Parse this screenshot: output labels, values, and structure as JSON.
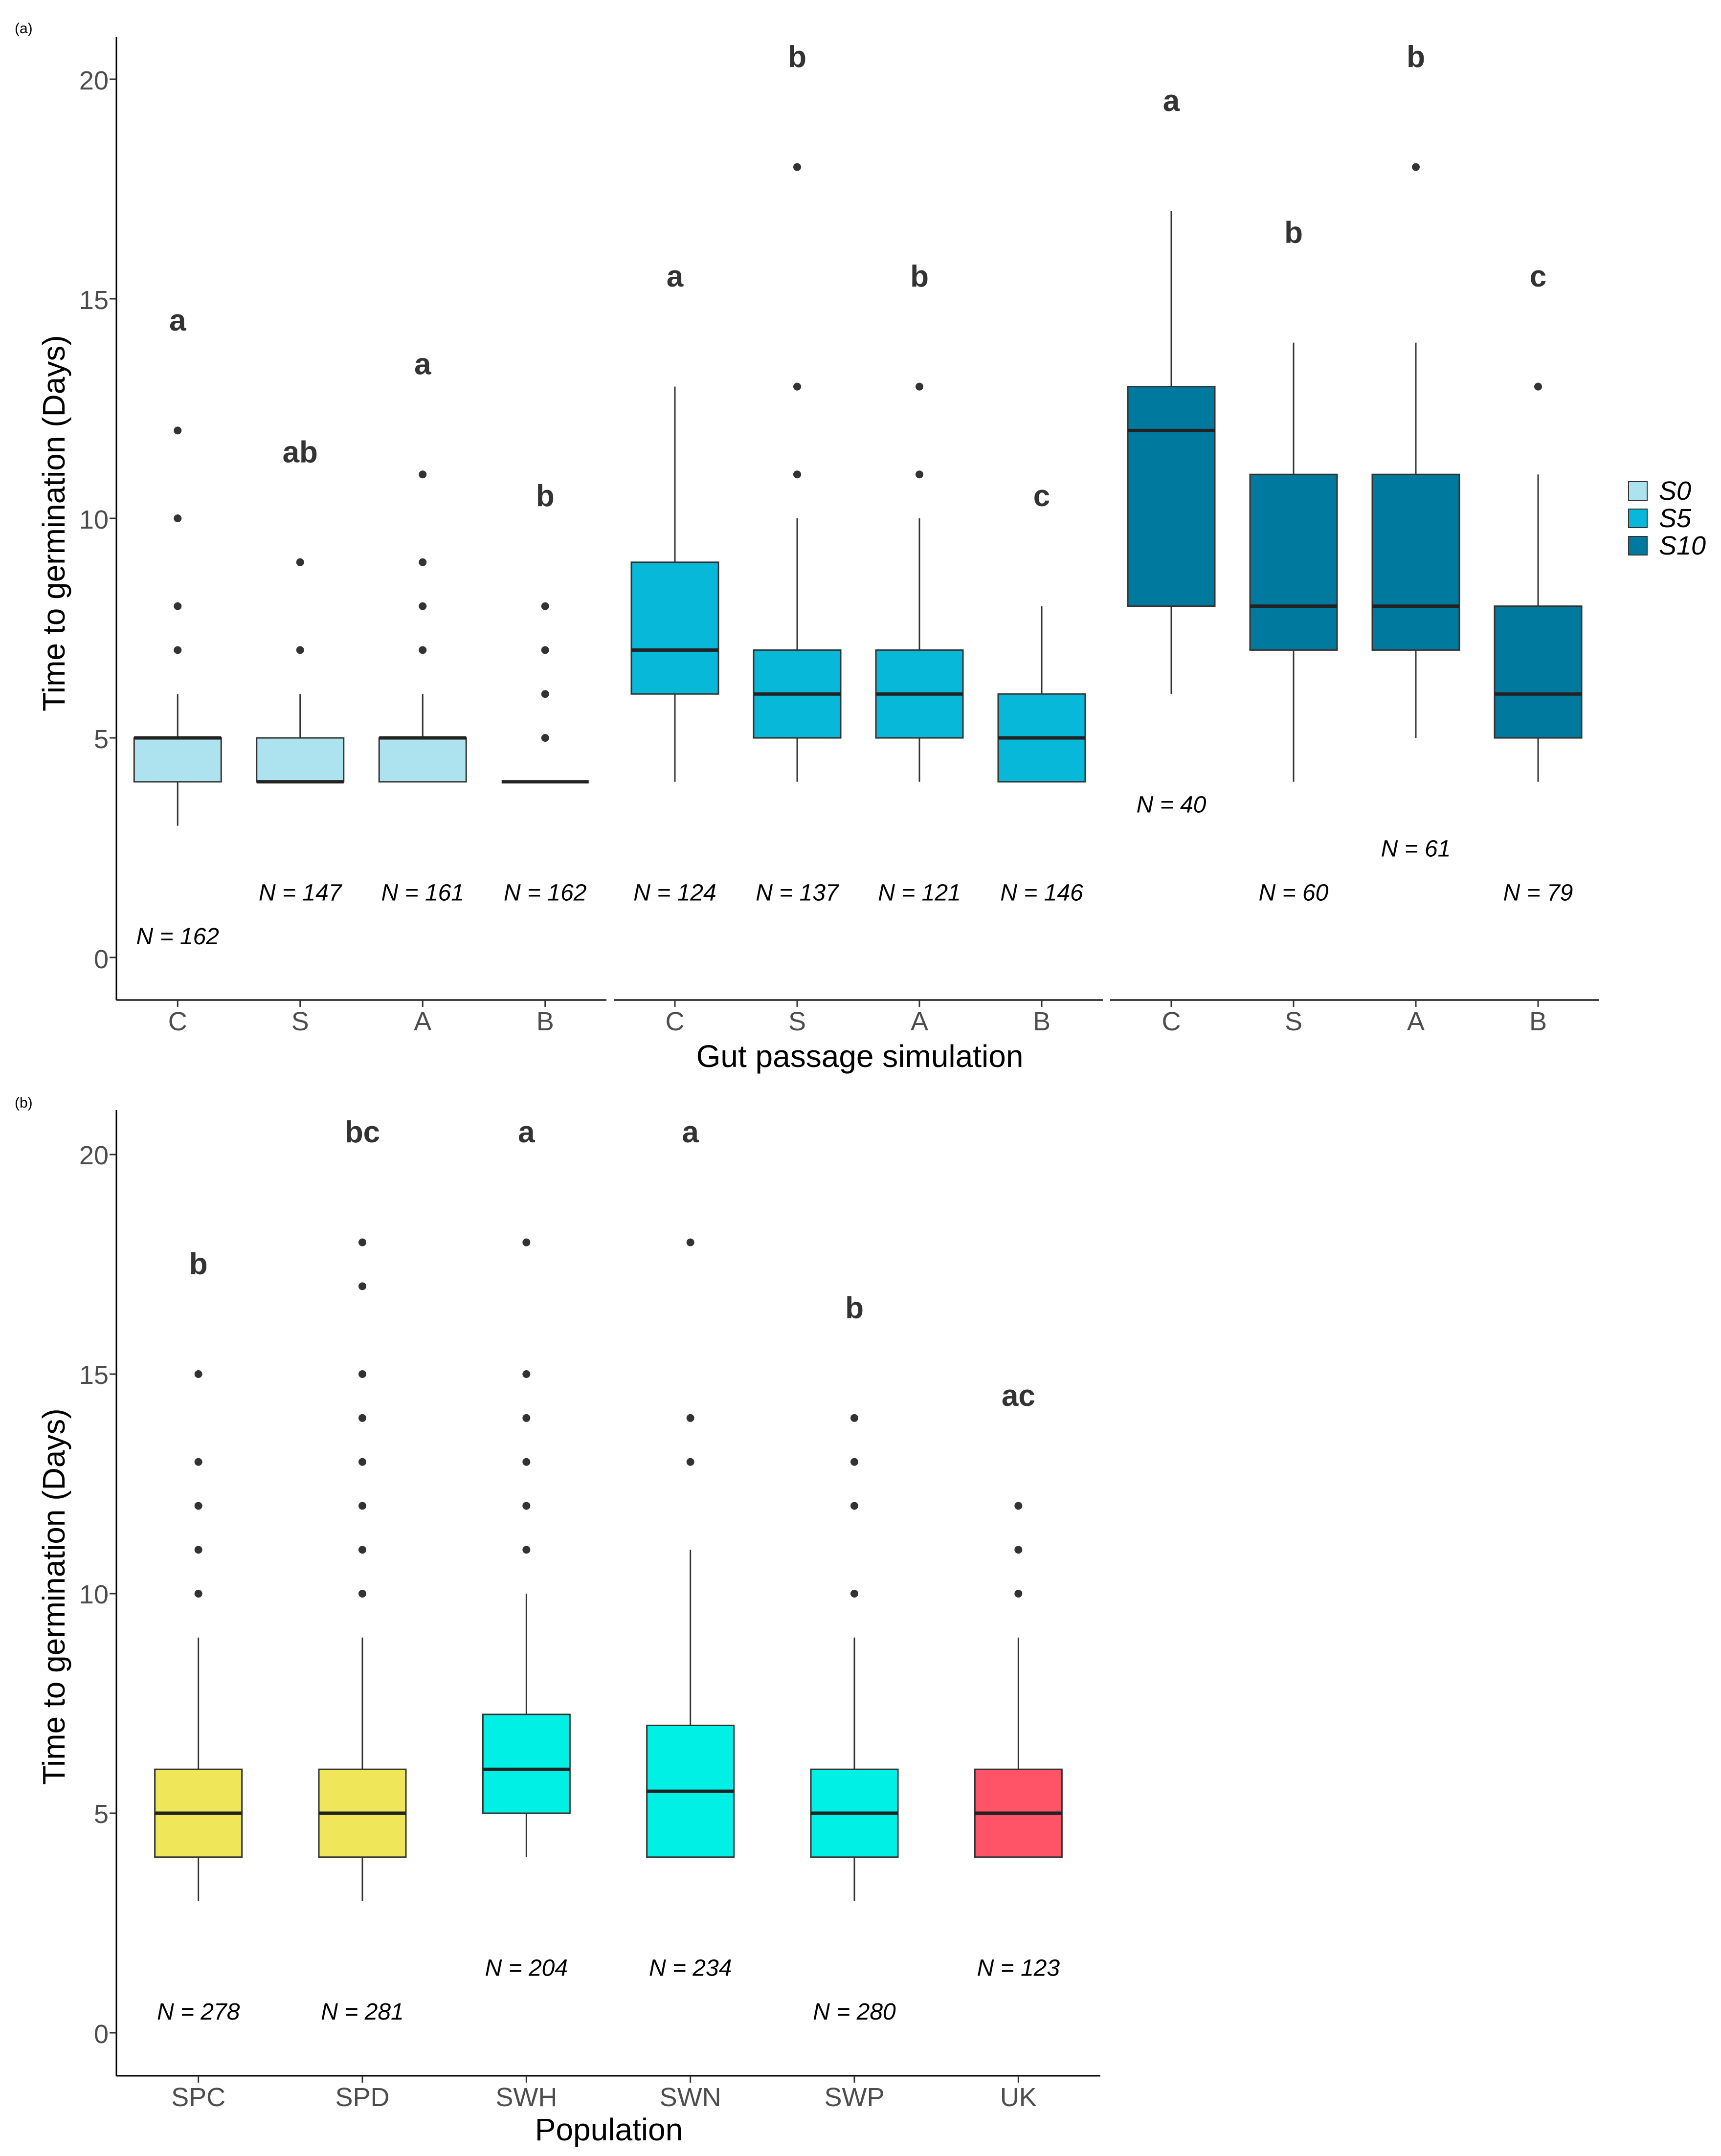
{
  "panel_a": {
    "tag": "(a)",
    "ylabel": "Time to germination (Days)",
    "xlabel": "Gut passage simulation",
    "yticks": [
      "0",
      "5",
      "10",
      "15",
      "20"
    ],
    "legend": {
      "items": [
        {
          "label": "S0",
          "color": "#ade3ee"
        },
        {
          "label": "S5",
          "color": "#08b8d8"
        },
        {
          "label": "S10",
          "color": "#00799e"
        }
      ]
    }
  },
  "panel_b": {
    "tag": "(b)",
    "ylabel": "Time to germination (Days)",
    "xlabel": "Population",
    "yticks": [
      "0",
      "5",
      "10",
      "15",
      "20"
    ]
  },
  "chart_data": [
    {
      "type": "box",
      "panel": "a",
      "ylabel": "Time to germination (Days)",
      "xlabel": "Gut passage simulation",
      "ylim": [
        -1,
        21
      ],
      "yticks": [
        0,
        5,
        10,
        15,
        20
      ],
      "grid": false,
      "legend_position": "right",
      "facets": [
        {
          "name": "S0",
          "color": "#ade3ee",
          "boxes": [
            {
              "category": "C",
              "min": 3,
              "q1": 4,
              "median": 5,
              "q3": 5,
              "max": 6,
              "outliers": [
                7,
                8,
                10,
                12
              ],
              "n_label": "N = 162",
              "n_y": 0.5,
              "letter": "a",
              "letter_y": 14.5
            },
            {
              "category": "S",
              "min": 4,
              "q1": 4,
              "median": 4,
              "q3": 5,
              "max": 6,
              "outliers": [
                7,
                9
              ],
              "n_label": "N = 147",
              "n_y": 1.5,
              "letter": "ab",
              "letter_y": 11.5
            },
            {
              "category": "A",
              "min": 4,
              "q1": 4,
              "median": 5,
              "q3": 5,
              "max": 6,
              "outliers": [
                7,
                8,
                9,
                11
              ],
              "n_label": "N = 161",
              "n_y": 1.5,
              "letter": "a",
              "letter_y": 13.5
            },
            {
              "category": "B",
              "min": 4,
              "q1": 4,
              "median": 4,
              "q3": 4,
              "max": 4,
              "outliers": [
                5,
                6,
                7,
                8
              ],
              "n_label": "N = 162",
              "n_y": 1.5,
              "letter": "b",
              "letter_y": 10.5
            }
          ]
        },
        {
          "name": "S5",
          "color": "#08b8d8",
          "boxes": [
            {
              "category": "C",
              "min": 4,
              "q1": 6,
              "median": 7,
              "q3": 9,
              "max": 13,
              "outliers": [],
              "n_label": "N = 124",
              "n_y": 1.5,
              "letter": "a",
              "letter_y": 15.5
            },
            {
              "category": "S",
              "min": 4,
              "q1": 5,
              "median": 6,
              "q3": 7,
              "max": 10,
              "outliers": [
                11,
                13,
                18
              ],
              "n_label": "N = 137",
              "n_y": 1.5,
              "letter": "b",
              "letter_y": 20.5
            },
            {
              "category": "A",
              "min": 4,
              "q1": 5,
              "median": 6,
              "q3": 7,
              "max": 10,
              "outliers": [
                11,
                13
              ],
              "n_label": "N = 121",
              "n_y": 1.5,
              "letter": "b",
              "letter_y": 15.5
            },
            {
              "category": "B",
              "min": 4,
              "q1": 4,
              "median": 5,
              "q3": 6,
              "max": 8,
              "outliers": [],
              "n_label": "N = 146",
              "n_y": 1.5,
              "letter": "c",
              "letter_y": 10.5
            }
          ]
        },
        {
          "name": "S10",
          "color": "#00799e",
          "boxes": [
            {
              "category": "C",
              "min": 6,
              "q1": 8,
              "median": 12,
              "q3": 13,
              "max": 17,
              "outliers": [],
              "n_label": "N = 40",
              "n_y": 3.5,
              "letter": "a",
              "letter_y": 19.5
            },
            {
              "category": "S",
              "min": 4,
              "q1": 7,
              "median": 8,
              "q3": 11,
              "max": 14,
              "outliers": [],
              "n_label": "N = 60",
              "n_y": 1.5,
              "letter": "b",
              "letter_y": 16.5
            },
            {
              "category": "A",
              "min": 5,
              "q1": 7,
              "median": 8,
              "q3": 11,
              "max": 14,
              "outliers": [
                18
              ],
              "n_label": "N = 61",
              "n_y": 2.5,
              "letter": "b",
              "letter_y": 20.5
            },
            {
              "category": "B",
              "min": 4,
              "q1": 5,
              "median": 6,
              "q3": 8,
              "max": 11,
              "outliers": [
                13
              ],
              "n_label": "N = 79",
              "n_y": 1.5,
              "letter": "c",
              "letter_y": 15.5
            }
          ]
        }
      ]
    },
    {
      "type": "box",
      "panel": "b",
      "ylabel": "Time to germination (Days)",
      "xlabel": "Population",
      "ylim": [
        -1,
        21
      ],
      "yticks": [
        0,
        5,
        10,
        15,
        20
      ],
      "grid": false,
      "boxes": [
        {
          "category": "SPC",
          "color": "#f0e65a",
          "min": 3,
          "q1": 4,
          "median": 5,
          "q3": 6,
          "max": 9,
          "outliers": [
            10,
            11,
            12,
            13,
            15
          ],
          "n_label": "N = 278",
          "n_y": 0.5,
          "letter": "b",
          "letter_y": 17.5
        },
        {
          "category": "SPD",
          "color": "#f0e65a",
          "min": 3,
          "q1": 4,
          "median": 5,
          "q3": 6,
          "max": 9,
          "outliers": [
            10,
            11,
            12,
            13,
            14,
            15,
            17,
            18
          ],
          "n_label": "N = 281",
          "n_y": 0.5,
          "letter": "bc",
          "letter_y": 20.5
        },
        {
          "category": "SWH",
          "color": "#00f0e6",
          "min": 4,
          "q1": 5,
          "median": 6,
          "q3": 7.25,
          "max": 10,
          "outliers": [
            11,
            12,
            13,
            14,
            15,
            18
          ],
          "n_label": "N = 204",
          "n_y": 1.5,
          "letter": "a",
          "letter_y": 20.5
        },
        {
          "category": "SWN",
          "color": "#00f0e6",
          "min": 4,
          "q1": 4,
          "median": 5.5,
          "q3": 7,
          "max": 11,
          "outliers": [
            13,
            14,
            18
          ],
          "n_label": "N = 234",
          "n_y": 1.5,
          "letter": "a",
          "letter_y": 20.5
        },
        {
          "category": "SWP",
          "color": "#00f0e6",
          "min": 3,
          "q1": 4,
          "median": 5,
          "q3": 6,
          "max": 9,
          "outliers": [
            10,
            12,
            13,
            14
          ],
          "n_label": "N = 280",
          "n_y": 0.5,
          "letter": "b",
          "letter_y": 16.5
        },
        {
          "category": "UK",
          "color": "#ff5467",
          "min": 4,
          "q1": 4,
          "median": 5,
          "q3": 6,
          "max": 9,
          "outliers": [
            10,
            11,
            12
          ],
          "n_label": "N = 123",
          "n_y": 1.5,
          "letter": "ac",
          "letter_y": 14.5
        }
      ]
    }
  ]
}
